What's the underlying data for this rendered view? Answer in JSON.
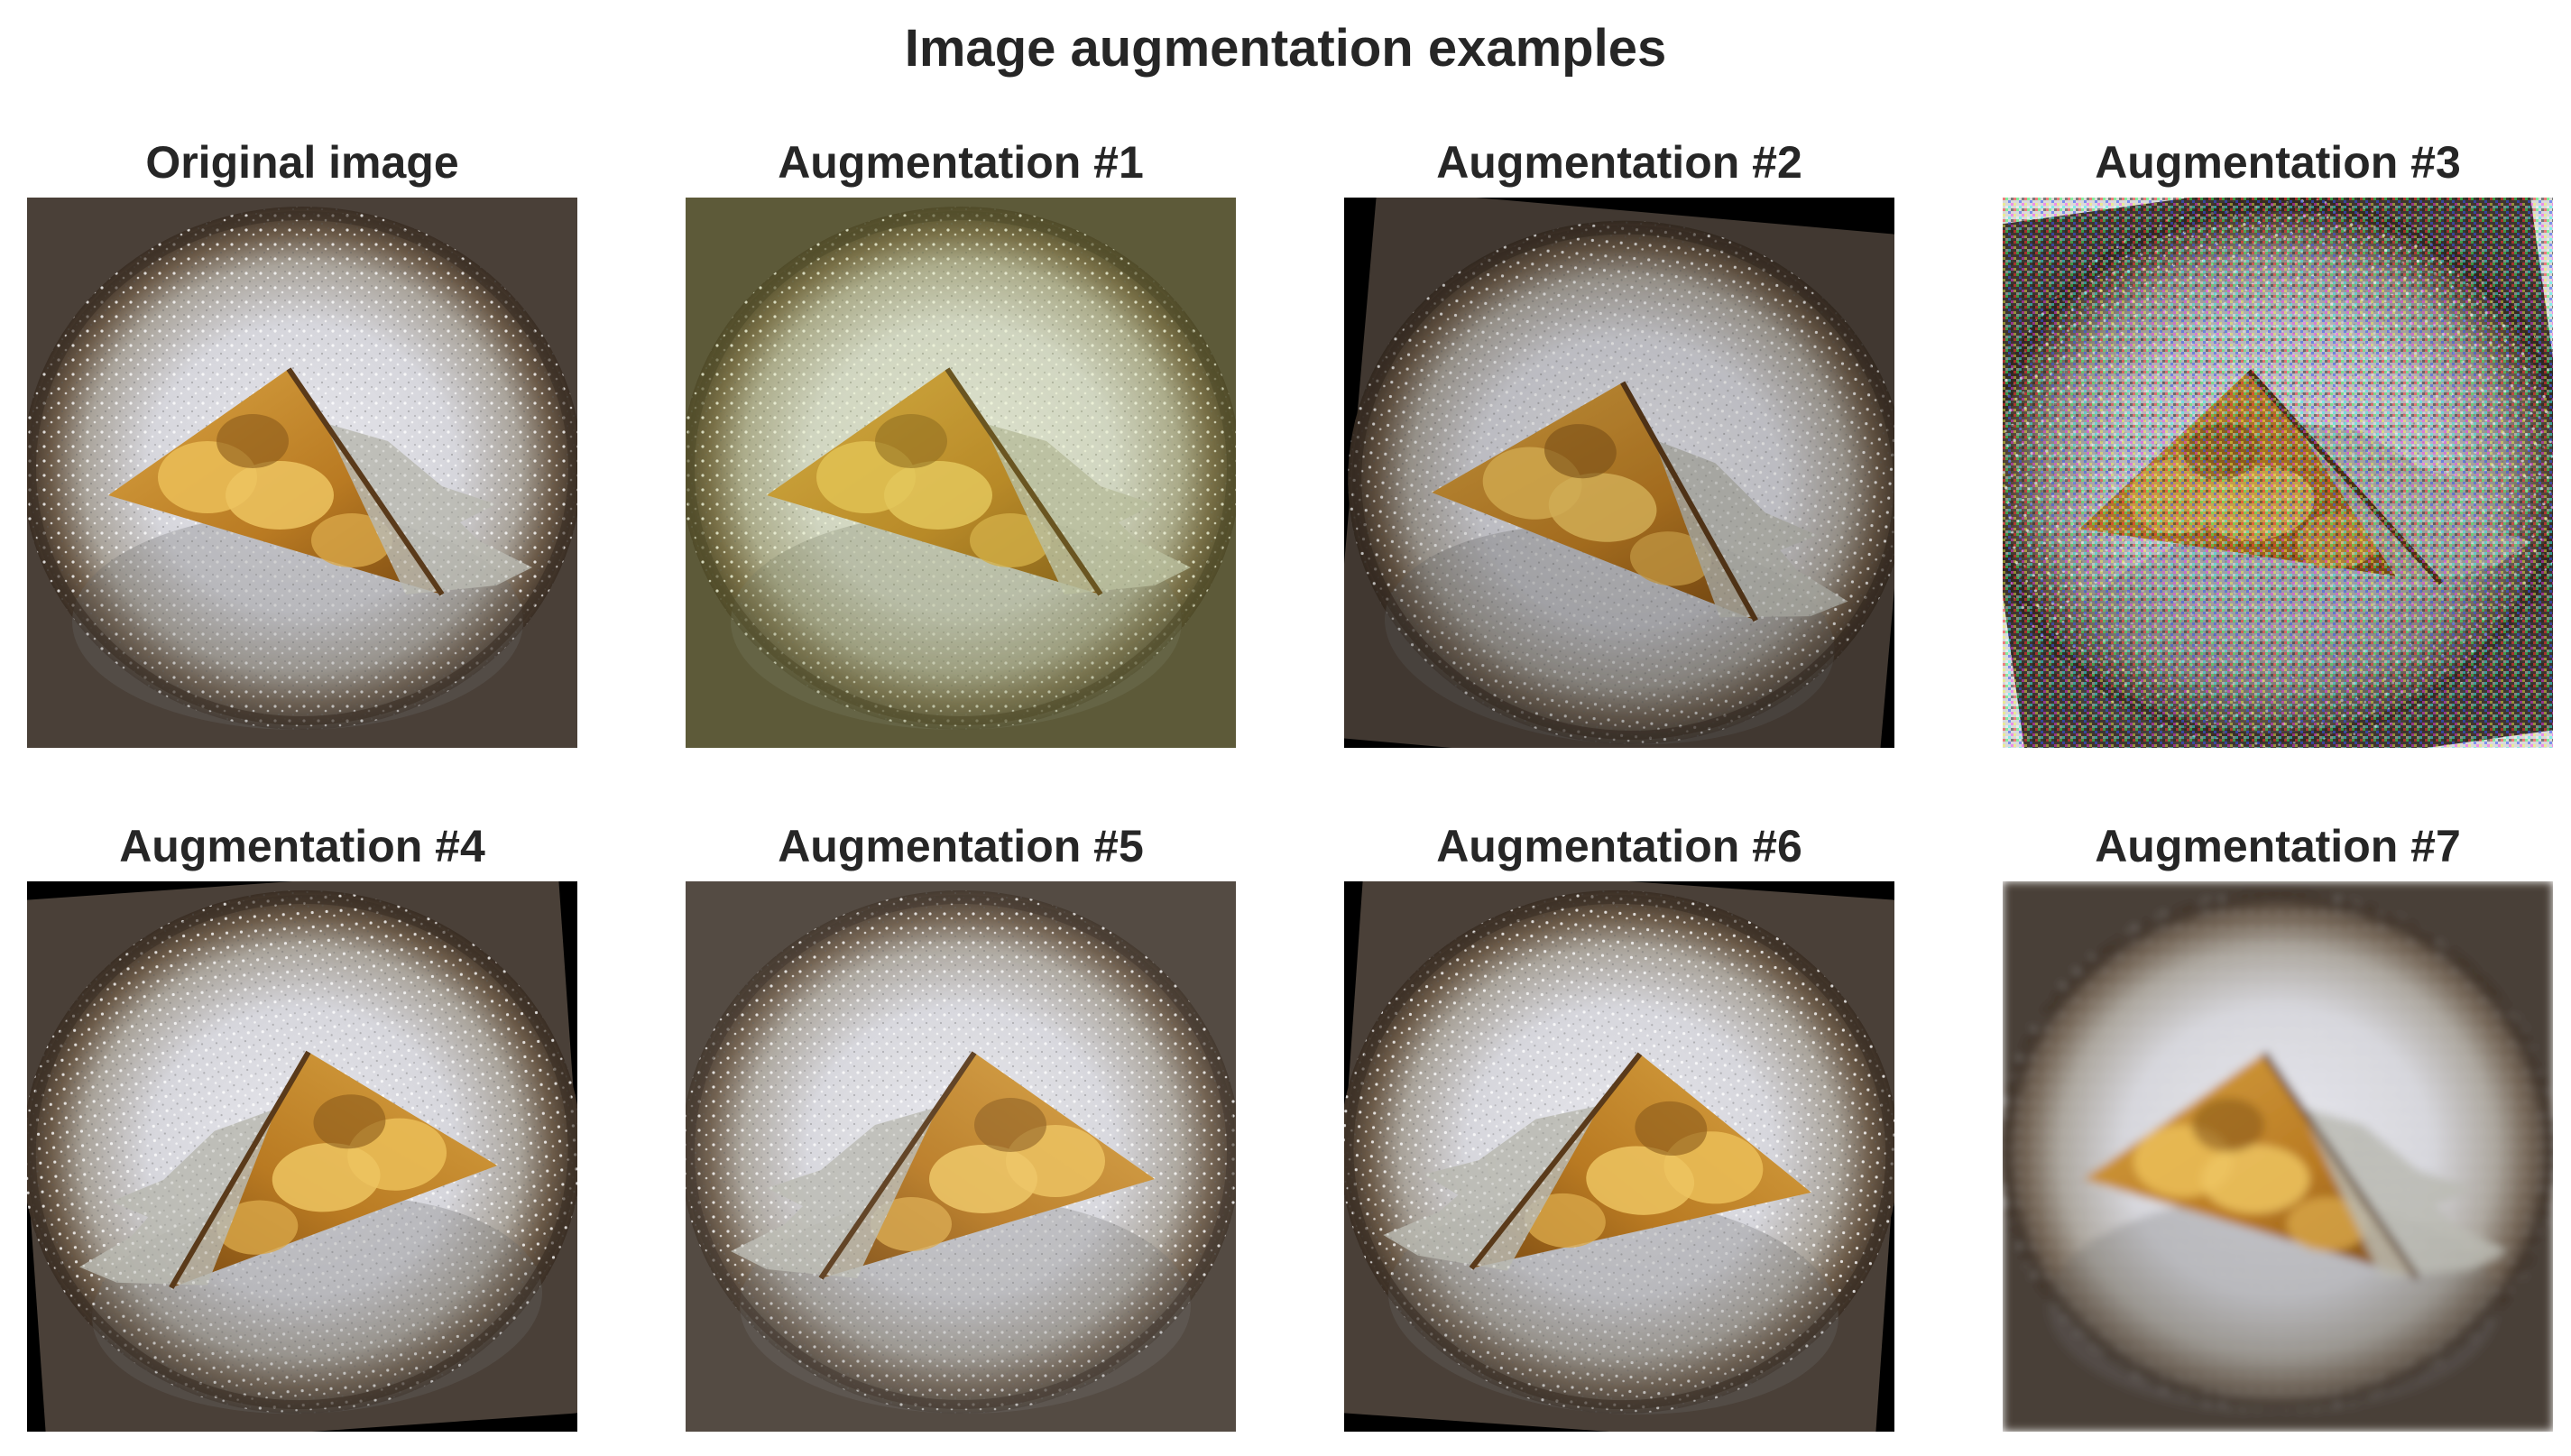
{
  "figure": {
    "title": "Image augmentation examples"
  },
  "panels": [
    {
      "title": "Original image",
      "transform": "original"
    },
    {
      "title": "Augmentation #1",
      "transform": "color-shift-yellow"
    },
    {
      "title": "Augmentation #2",
      "transform": "rotated-darker"
    },
    {
      "title": "Augmentation #3",
      "transform": "gaussian-noise"
    },
    {
      "title": "Augmentation #4",
      "transform": "horizontal-flip-rotated"
    },
    {
      "title": "Augmentation #5",
      "transform": "horizontal-flip-bright"
    },
    {
      "title": "Augmentation #6",
      "transform": "horizontal-flip-rotated"
    },
    {
      "title": "Augmentation #7",
      "transform": "blur"
    }
  ],
  "image_subject": "pie slice on plate dusted with powdered sugar",
  "colors": {
    "background": "#ffffff",
    "text": "#262626",
    "plate_rim": "#5a4a3a",
    "sugar": "#e4e4ea",
    "filling": "#c98a2a",
    "apple": "#e6b450",
    "server": "#b8b8b0"
  }
}
